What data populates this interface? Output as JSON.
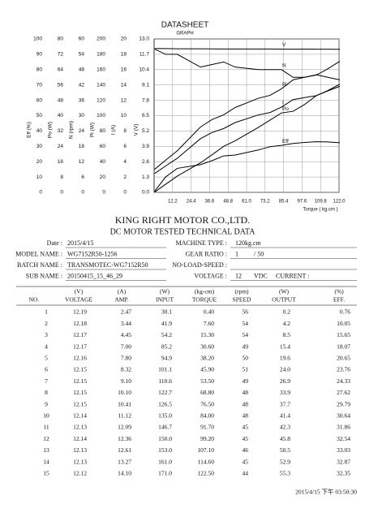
{
  "header": {
    "title": "DATASHEET",
    "subtitle": "GRAPH"
  },
  "chart_data": {
    "type": "line",
    "x_label": "Torque ( kg.cm )",
    "x": [
      0.4,
      7.6,
      15.3,
      30.6,
      38.2,
      45.9,
      53.5,
      68.8,
      76.5,
      84,
      91.7,
      99.2,
      107.1,
      114.6,
      122.5
    ],
    "xlim": [
      0,
      122
    ],
    "xticks": [
      12.2,
      24.4,
      36.6,
      48.8,
      {
        "value": 61,
        "label": "61.0"
      },
      73.2,
      85.4,
      97.6,
      109.8,
      {
        "value": 122,
        "label": "122.0"
      }
    ],
    "grid": true,
    "y_axes": [
      {
        "label": "Eff (%)",
        "ylim": [
          0,
          100
        ],
        "yticks": [
          0,
          10,
          20,
          30,
          40,
          50,
          60,
          70,
          80,
          90,
          100
        ]
      },
      {
        "label": "Po (W)",
        "ylim": [
          0,
          80
        ],
        "yticks": [
          0,
          8,
          16,
          24,
          32,
          40,
          48,
          56,
          64,
          72,
          80
        ]
      },
      {
        "label": "N (rpm)",
        "ylim": [
          0,
          60
        ],
        "yticks": [
          0,
          6,
          12,
          18,
          24,
          30,
          36,
          42,
          48,
          54,
          60
        ]
      },
      {
        "label": "Pi (W)",
        "ylim": [
          0,
          200
        ],
        "yticks": [
          0,
          20,
          40,
          60,
          80,
          100,
          120,
          140,
          160,
          180,
          200
        ]
      },
      {
        "label": "I (A)",
        "ylim": [
          0,
          20
        ],
        "yticks": [
          0,
          2,
          4,
          6,
          8,
          10,
          12,
          14,
          16,
          18,
          20
        ]
      },
      {
        "label": "V (V)",
        "ylim": [
          0,
          13
        ],
        "yticks": [
          {
            "value": 0,
            "label": "0.0"
          },
          1.3,
          2.6,
          3.9,
          5.2,
          6.5,
          7.8,
          9.1,
          10.4,
          11.7,
          {
            "value": 13,
            "label": "13.0"
          }
        ]
      }
    ],
    "series": [
      {
        "name": "V",
        "color": "#000000",
        "axis": 5,
        "values": [
          12.19,
          12.18,
          12.17,
          12.17,
          12.16,
          12.15,
          12.15,
          12.15,
          12.15,
          12.14,
          12.13,
          12.14,
          12.13,
          12.13,
          12.12
        ]
      },
      {
        "name": "N",
        "color": "#000000",
        "axis": 2,
        "values": [
          56,
          54,
          54,
          49,
          50,
          51,
          49,
          48,
          48,
          48,
          45,
          45,
          46,
          45,
          44
        ]
      },
      {
        "name": "Pi",
        "color": "#000000",
        "axis": 3,
        "values": [
          30.1,
          41.9,
          54.2,
          85.2,
          94.9,
          101.1,
          110.6,
          122.7,
          126.5,
          135.0,
          146.7,
          150.0,
          153.0,
          161.0,
          171.0
        ]
      },
      {
        "name": "I",
        "color": "#000000",
        "axis": 4,
        "values": [
          2.47,
          3.44,
          4.45,
          7.0,
          7.8,
          8.32,
          9.1,
          10.1,
          10.41,
          11.12,
          12.09,
          12.36,
          12.61,
          13.27,
          14.1
        ]
      },
      {
        "name": "Po",
        "color": "#000000",
        "axis": 1,
        "values": [
          0.2,
          4.2,
          8.5,
          15.4,
          19.6,
          24.0,
          26.9,
          33.9,
          37.7,
          41.4,
          42.3,
          45.8,
          50.5,
          52.9,
          55.3
        ]
      },
      {
        "name": "Eff",
        "color": "#000000",
        "axis": 0,
        "values": [
          0.76,
          10.05,
          15.65,
          18.07,
          20.65,
          23.76,
          24.33,
          27.62,
          29.79,
          30.64,
          31.86,
          32.54,
          33.03,
          32.87,
          32.35
        ]
      }
    ]
  },
  "company": "KING RIGHT MOTOR CO.,LTD.",
  "document_title": "DC MOTOR TESTED TECHNICAL DATA",
  "info": {
    "left": [
      {
        "label": "Date :",
        "value": "2015/4/15"
      },
      {
        "label": "MODEL NAME :",
        "value": "WG7152R50-1256"
      },
      {
        "label": "BATCH NAME :",
        "value": "TRANSMOTEC-WG7152R50"
      },
      {
        "label": "SUB NAME :",
        "value": "20150415_15_46_29"
      }
    ],
    "right": [
      {
        "label": "MACHINE TYPE :",
        "value": "120kg.cm"
      },
      {
        "label": "GEAR RATIO :",
        "value": "1",
        "suffix": "/ 50"
      },
      {
        "label": "NO-LOAD-SPEED :"
      },
      {
        "label": "VOLTAGE :",
        "value": "12",
        "suffix": "VDC",
        "extra": "CURRENT :"
      }
    ]
  },
  "table": {
    "units": [
      "(V)",
      "(A)",
      "(W)",
      "(kg-cm)",
      "(rpm)",
      "(W)",
      "(%)"
    ],
    "columns": [
      "NO.",
      "VOLTAGE",
      "AMP.",
      "INPUT",
      "TORQUE",
      "SPEED",
      "OUTPUT",
      "EFF."
    ],
    "rows": [
      [
        "1",
        "12.19",
        "2.47",
        "30.1",
        "0.40",
        "56",
        "0.2",
        "0.76"
      ],
      [
        "2",
        "12.18",
        "3.44",
        "41.9",
        "7.60",
        "54",
        "4.2",
        "10.05"
      ],
      [
        "3",
        "12.17",
        "4.45",
        "54.2",
        "15.30",
        "54",
        "8.5",
        "15.65"
      ],
      [
        "4",
        "12.17",
        "7.00",
        "85.2",
        "30.60",
        "49",
        "15.4",
        "18.07"
      ],
      [
        "5",
        "12.16",
        "7.80",
        "94.9",
        "38.20",
        "50",
        "19.6",
        "20.65"
      ],
      [
        "6",
        "12.15",
        "8.32",
        "101.1",
        "45.90",
        "51",
        "24.0",
        "23.76"
      ],
      [
        "7",
        "12.15",
        "9.10",
        "110.6",
        "53.50",
        "49",
        "26.9",
        "24.33"
      ],
      [
        "8",
        "12.15",
        "10.10",
        "122.7",
        "68.80",
        "48",
        "33.9",
        "27.62"
      ],
      [
        "9",
        "12.15",
        "10.41",
        "126.5",
        "76.50",
        "48",
        "37.7",
        "29.79"
      ],
      [
        "10",
        "12.14",
        "11.12",
        "135.0",
        "84.00",
        "48",
        "41.4",
        "30.64"
      ],
      [
        "11",
        "12.13",
        "12.09",
        "146.7",
        "91.70",
        "45",
        "42.3",
        "31.86"
      ],
      [
        "12",
        "12.14",
        "12.36",
        "150.0",
        "99.20",
        "45",
        "45.8",
        "32.54"
      ],
      [
        "13",
        "12.13",
        "12.61",
        "153.0",
        "107.10",
        "46",
        "50.5",
        "33.03"
      ],
      [
        "14",
        "12.13",
        "13.27",
        "161.0",
        "114.60",
        "45",
        "52.9",
        "32.87"
      ],
      [
        "15",
        "12.12",
        "14.10",
        "171.0",
        "122.50",
        "44",
        "55.3",
        "32.35"
      ]
    ]
  },
  "footer": "2015/4/15 下午 03:50:30"
}
